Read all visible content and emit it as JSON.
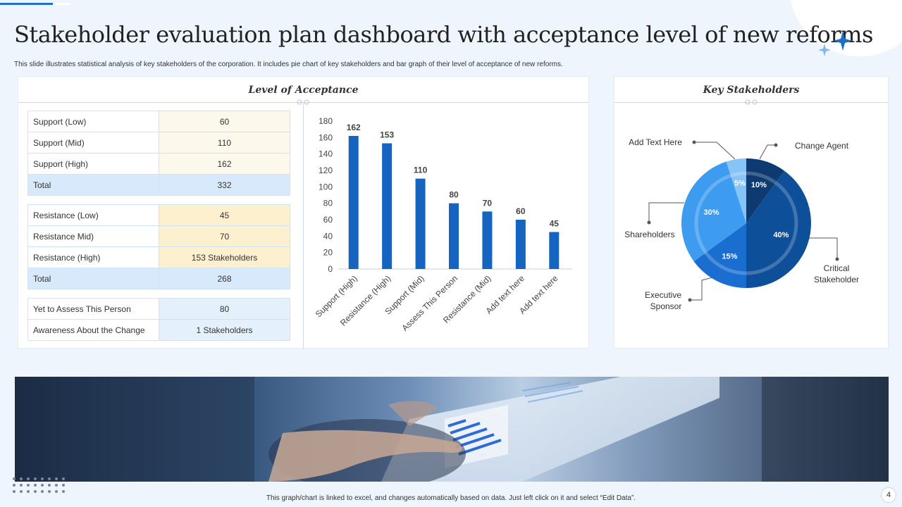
{
  "header": {
    "title": "Stakeholder evaluation plan dashboard with acceptance level of new reforms",
    "subtitle": "This slide illustrates statistical analysis of key stakeholders of the corporation. It includes pie chart of key stakeholders and bar graph of their level of acceptance of new reforms."
  },
  "acceptance": {
    "title": "Level of Acceptance",
    "support": [
      {
        "label": "Support (Low)",
        "value": "60"
      },
      {
        "label": "Support (Mid)",
        "value": "110"
      },
      {
        "label": "Support (High)",
        "value": "162"
      }
    ],
    "support_total": {
      "label": "Total",
      "value": "332"
    },
    "resistance": [
      {
        "label": "Resistance (Low)",
        "value": "45"
      },
      {
        "label": "Resistance Mid)",
        "value": "70"
      },
      {
        "label": "Resistance (High)",
        "value": "153 Stakeholders"
      }
    ],
    "resistance_total": {
      "label": "Total",
      "value": "268"
    },
    "other": [
      {
        "label": "Yet to Assess This Person",
        "value": "80"
      },
      {
        "label": "Awareness About the Change",
        "value": "1 Stakeholders"
      }
    ]
  },
  "stakeholders": {
    "title": "Key Stakeholders"
  },
  "chart_data": [
    {
      "type": "bar",
      "title": "Level of Acceptance",
      "categories": [
        "Support (High)",
        "Resistance (High)",
        "Support (Mid)",
        "Assess This Person",
        "Resistance (Mid)",
        "Add text here",
        "Add text here"
      ],
      "values": [
        162,
        153,
        110,
        80,
        70,
        60,
        45
      ],
      "ylim": [
        0,
        180
      ],
      "yticks": [
        0,
        20,
        40,
        60,
        80,
        100,
        120,
        140,
        160,
        180
      ],
      "xlabel": "",
      "ylabel": "",
      "color": "#1565c0"
    },
    {
      "type": "pie",
      "title": "Key Stakeholders",
      "slices": [
        {
          "label": "Change Agent",
          "value": 10,
          "display": "10%",
          "color": "#0d3a70"
        },
        {
          "label": "Critical Stakeholder",
          "value": 40,
          "display": "40%",
          "color": "#0e4f9a"
        },
        {
          "label": "Executive Sponsor",
          "value": 15,
          "display": "15%",
          "color": "#1a6ed0"
        },
        {
          "label": "Shareholders",
          "value": 30,
          "display": "30%",
          "color": "#3d9cf0"
        },
        {
          "label": "Add Text Here",
          "value": 5,
          "display": "5%",
          "color": "#86c3f7"
        }
      ],
      "legend_labels": {
        "add_text": "Add Text Here",
        "change_agent": "Change  Agent",
        "shareholders": "Shareholders",
        "critical_1": "Critical",
        "critical_2": "Stakeholder",
        "executive_1": "Executive",
        "executive_2": "Sponsor"
      }
    }
  ],
  "footer": {
    "note": "This graph/chart is linked to excel, and changes automatically based on data. Just left click on it and select “Edit Data”.",
    "page": "4"
  }
}
